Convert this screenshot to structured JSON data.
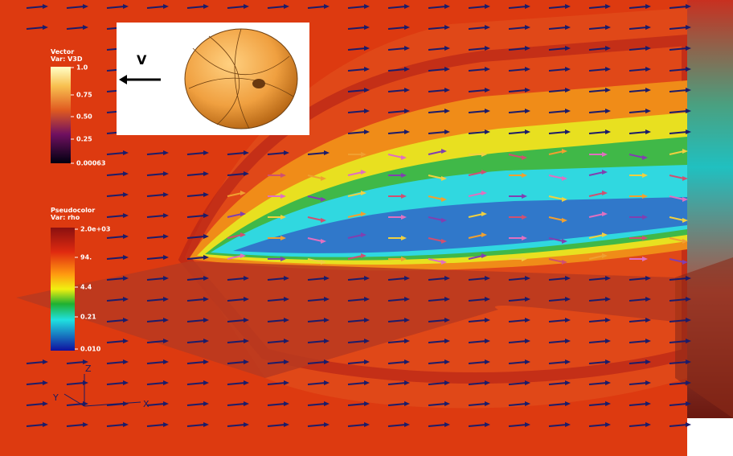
{
  "inset": {
    "label": "V"
  },
  "vector_legend": {
    "title": "Vector",
    "variable": "Var: V3D",
    "ticks": [
      "1.0",
      "0.75",
      "0.50",
      "0.25",
      "0.00063"
    ]
  },
  "pseudocolor_legend": {
    "title": "Pseudocolor",
    "variable": "Var: rho",
    "ticks": [
      "2.0e+03",
      "94.",
      "4.4",
      "0.21",
      "0.010"
    ]
  },
  "axes": {
    "z": "Z",
    "y": "Y",
    "x": "X"
  }
}
